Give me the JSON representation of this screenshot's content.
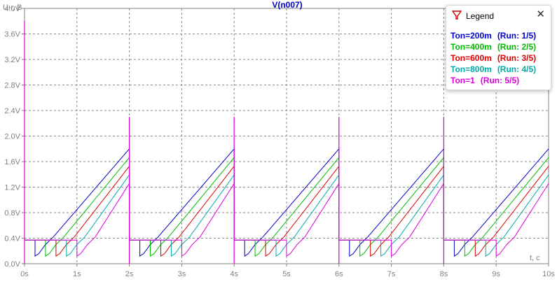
{
  "chart_data": {
    "type": "line",
    "title": "V(n007)",
    "ylabel": "Uн, В",
    "xlabel": "t, с",
    "xlim": [
      0,
      10
    ],
    "ylim": [
      0,
      4.0
    ],
    "x_ticks": [
      "0s",
      "1s",
      "2s",
      "3s",
      "4s",
      "5s",
      "6s",
      "7s",
      "8s",
      "9s",
      "10s"
    ],
    "y_ticks": [
      "0.0V",
      "0.4V",
      "0.8V",
      "1.2V",
      "1.6V",
      "2.0V",
      "2.4V",
      "2.8V",
      "3.2V",
      "3.6V",
      "4.0V"
    ],
    "grid": true,
    "period": 2,
    "series": [
      {
        "name": "Ton=200m",
        "run": "(Run: 1/5)",
        "color": "#0000cc",
        "ton": 0.2
      },
      {
        "name": "Ton=400m",
        "run": "(Run: 2/5)",
        "color": "#00bb00",
        "ton": 0.4
      },
      {
        "name": "Ton=600m",
        "run": "(Run: 3/5)",
        "color": "#dd0000",
        "ton": 0.6
      },
      {
        "name": "Ton=800m",
        "run": "(Run: 4/5)",
        "color": "#00aaaa",
        "ton": 0.8
      },
      {
        "name": "Ton=1",
        "run": "(Run: 5/5)",
        "color": "#dd00dd",
        "ton": 1.0
      }
    ],
    "spikes": {
      "first": 3.8,
      "others": 2.3,
      "color": "#dd00dd"
    },
    "hold_level": 0.37,
    "dip_level": 0.12,
    "peak_level": 1.8,
    "ramp_start_level": 0.2
  },
  "legend": {
    "title": "Legend",
    "close": "✕"
  }
}
